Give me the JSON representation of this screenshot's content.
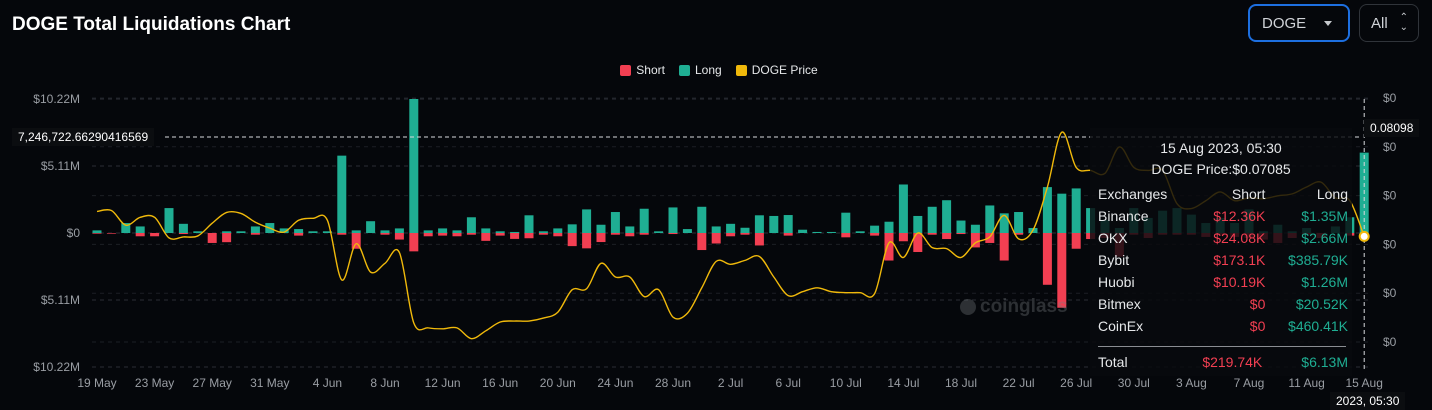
{
  "title": "DOGE Total Liquidations Chart",
  "controls": {
    "coin": "DOGE",
    "range": "All"
  },
  "colors": {
    "short": "#f23f52",
    "long": "#1fae93",
    "price": "#f0b90b",
    "background": "#05070b"
  },
  "chart_data": {
    "type": "bar",
    "legend": [
      "Short",
      "Long",
      "DOGE Price"
    ],
    "legend_position": "top-center",
    "grid": true,
    "y_left": {
      "ticks": [
        "$10.22M",
        "$5.11M",
        "$0",
        "$5.11M",
        "$10.22M"
      ],
      "ylim": [
        -10.22,
        10.22
      ],
      "unit": "M USD"
    },
    "y_right": {
      "ticks": [
        "$0",
        "$0",
        "$0",
        "$0",
        "$0",
        "$0"
      ],
      "ylim": [
        0.0575,
        0.0849
      ]
    },
    "x_ticks": [
      "19 May",
      "23 May",
      "27 May",
      "31 May",
      "4 Jun",
      "8 Jun",
      "12 Jun",
      "16 Jun",
      "20 Jun",
      "24 Jun",
      "28 Jun",
      "2 Jul",
      "6 Jul",
      "10 Jul",
      "14 Jul",
      "18 Jul",
      "22 Jul",
      "26 Jul",
      "30 Jul",
      "3 Aug",
      "7 Aug",
      "11 Aug",
      "15 Aug"
    ],
    "x_start": "19 May",
    "x_end": "15 Aug",
    "long": [
      0.2,
      0,
      0.76,
      0.5,
      0,
      1.9,
      0.7,
      0.13,
      0,
      0.13,
      0.13,
      0.5,
      0.76,
      0.35,
      0.3,
      0.13,
      0.13,
      5.9,
      0.2,
      0.9,
      0.2,
      0.35,
      10.22,
      0.2,
      0.35,
      0.2,
      1.2,
      0.35,
      0.13,
      0.08,
      1.35,
      0.13,
      0.35,
      0.66,
      1.8,
      0.63,
      1.6,
      0.5,
      1.85,
      0.13,
      1.95,
      0.3,
      2.0,
      0.5,
      0.7,
      0.4,
      1.35,
      1.3,
      1.37,
      0.25,
      0.08,
      0.08,
      1.55,
      0.13,
      0.56,
      0.86,
      3.7,
      1.3,
      2.0,
      2.5,
      0.95,
      0.63,
      2.1,
      1.5,
      1.6,
      0.38,
      3.5,
      3.0,
      3.4,
      1.9,
      1.0,
      0.38,
      1.9,
      1.15,
      1.7,
      1.9,
      1.4,
      0.76,
      1.15,
      0.76,
      1.8,
      0.13,
      0.63,
      0.13,
      0.38,
      0,
      0.5,
      1.2,
      6.13
    ],
    "short": [
      0.05,
      0.05,
      0,
      0.25,
      0.25,
      0,
      0.08,
      0,
      0.76,
      0.7,
      0,
      0.13,
      0,
      0,
      0.2,
      0,
      0,
      0.13,
      1.2,
      0,
      0.13,
      0.5,
      1.4,
      0.25,
      0.2,
      0.25,
      0.13,
      0.6,
      0.2,
      0.45,
      0.4,
      0.13,
      0.25,
      1.0,
      1.17,
      0.69,
      0.13,
      0.25,
      0.13,
      0,
      0.08,
      0,
      1.3,
      0.8,
      0.25,
      0.13,
      0.95,
      0,
      0.2,
      0,
      0,
      0,
      0.33,
      0,
      0.2,
      2.1,
      0.63,
      1.45,
      0.13,
      0.46,
      0.08,
      1.1,
      0.76,
      2.1,
      0.13,
      0,
      3.95,
      5.7,
      1.2,
      0.46,
      0.38,
      1.8,
      0.13,
      0.38,
      0.13,
      0.13,
      0.13,
      0.3,
      0.13,
      0.3,
      0.38,
      0.5,
      0.76,
      0.38,
      0.13,
      0.38,
      0,
      0.2,
      0.22
    ],
    "price": [
      0.0734,
      0.0735,
      0.072,
      0.0728,
      0.0728,
      0.0707,
      0.0708,
      0.0709,
      0.0722,
      0.0733,
      0.0732,
      0.0723,
      0.0717,
      0.0713,
      0.0725,
      0.0727,
      0.0725,
      0.0664,
      0.0701,
      0.0672,
      0.0681,
      0.0692,
      0.062,
      0.0615,
      0.0614,
      0.0615,
      0.0604,
      0.0612,
      0.0621,
      0.0622,
      0.0622,
      0.0625,
      0.0631,
      0.0654,
      0.0655,
      0.0681,
      0.0667,
      0.0667,
      0.0647,
      0.0654,
      0.0626,
      0.063,
      0.0656,
      0.0683,
      0.068,
      0.0684,
      0.0688,
      0.0667,
      0.0648,
      0.0652,
      0.0656,
      0.0652,
      0.0651,
      0.0651,
      0.065,
      0.0702,
      0.0687,
      0.0712,
      0.0697,
      0.0696,
      0.0687,
      0.0702,
      0.0708,
      0.073,
      0.0706,
      0.0715,
      0.0759,
      0.0815,
      0.0779,
      0.0776,
      0.0773,
      0.08,
      0.0779,
      0.0776,
      0.0776,
      0.0742,
      0.0737,
      0.0745,
      0.0754,
      0.0745,
      0.0748,
      0.0747,
      0.075,
      0.0752,
      0.0759,
      0.0764,
      0.0748,
      0.0745,
      0.07085
    ],
    "crosshair": {
      "left_value": "7,246,722.66290416569",
      "right_value": "0.08098",
      "x_label": "2023, 05:30"
    }
  },
  "tooltip": {
    "date": "15 Aug 2023, 05:30",
    "price_label": "DOGE Price:$0.07085",
    "headers": [
      "Exchanges",
      "Short",
      "Long"
    ],
    "rows": [
      {
        "exchange": "Binance",
        "short": "$12.36K",
        "long": "$1.35M"
      },
      {
        "exchange": "OKX",
        "short": "$24.08K",
        "long": "$2.66M"
      },
      {
        "exchange": "Bybit",
        "short": "$173.1K",
        "long": "$385.79K"
      },
      {
        "exchange": "Huobi",
        "short": "$10.19K",
        "long": "$1.26M"
      },
      {
        "exchange": "Bitmex",
        "short": "$0",
        "long": "$20.52K"
      },
      {
        "exchange": "CoinEx",
        "short": "$0",
        "long": "$460.41K"
      }
    ],
    "total": {
      "label": "Total",
      "short": "$219.74K",
      "long": "$6.13M"
    }
  },
  "watermark": "coinglass"
}
